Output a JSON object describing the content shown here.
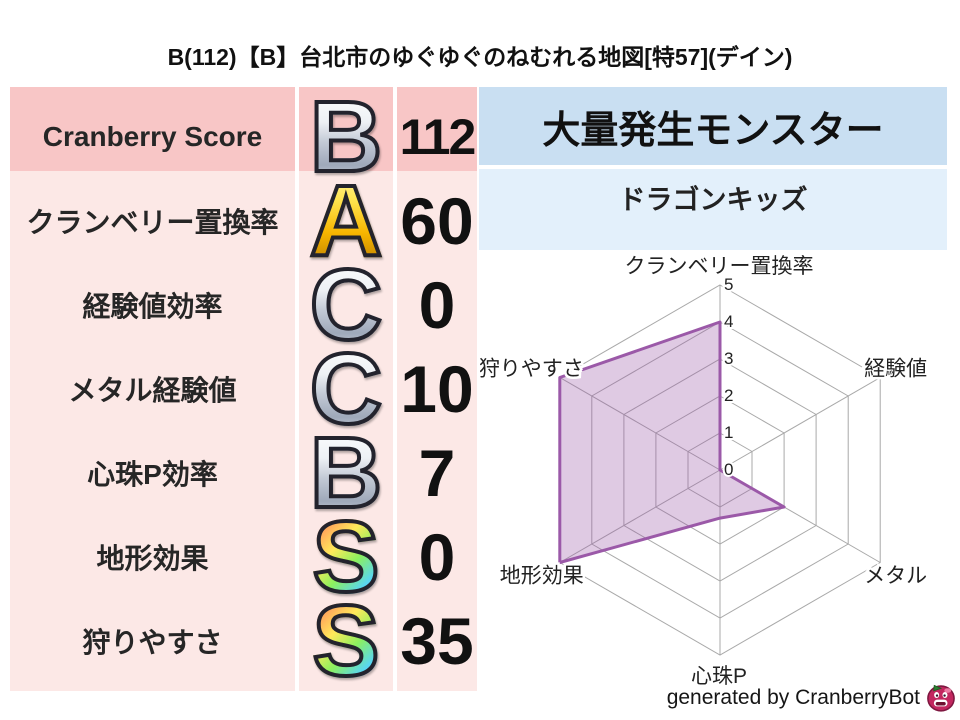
{
  "title": "B(112)【B】台北市のゆぐゆぐのねむれる地図[特57](デイン)",
  "table": {
    "rows": [
      {
        "label": "Cranberry Score",
        "grade": "B",
        "style": "silver",
        "value": "112"
      },
      {
        "label": "クランベリー置換率",
        "grade": "A",
        "style": "gold",
        "value": "60"
      },
      {
        "label": "経験値効率",
        "grade": "C",
        "style": "silver",
        "value": "0"
      },
      {
        "label": "メタル経験値",
        "grade": "C",
        "style": "silver",
        "value": "10"
      },
      {
        "label": "心珠P効率",
        "grade": "B",
        "style": "silver",
        "value": "7"
      },
      {
        "label": "地形効果",
        "grade": "S",
        "style": "rainbow",
        "value": "0"
      },
      {
        "label": "狩りやすさ",
        "grade": "S",
        "style": "rainbow",
        "value": "35"
      }
    ]
  },
  "monster_panel": {
    "header": "大量発生モンスター",
    "monster": "ドラゴンキッズ"
  },
  "chart_data": {
    "type": "radar",
    "axes": [
      "クランベリー置換率",
      "経験値",
      "メタル",
      "心珠P",
      "地形効果",
      "狩りやすさ"
    ],
    "values": [
      4,
      0,
      2,
      1.3,
      5,
      5
    ],
    "min": 0,
    "max": 5,
    "tick_labels": [
      "0",
      "1",
      "2",
      "3",
      "4",
      "5"
    ],
    "grid_shape": "hexagon",
    "grid_levels": 5,
    "fill_color": "rgba(155,89,168,0.32)",
    "stroke_color": "#9B59A8",
    "grid_color": "#A9A9A9"
  },
  "footer": {
    "credit": "generated by CranberryBot",
    "icon": "cranberry-icon"
  },
  "colors": {
    "row_header_pink": "#F8C6C6",
    "row_pink": "#FCE8E6",
    "monster_header_blue": "#C9DFF2",
    "monster_blue": "#E3F0FB"
  }
}
